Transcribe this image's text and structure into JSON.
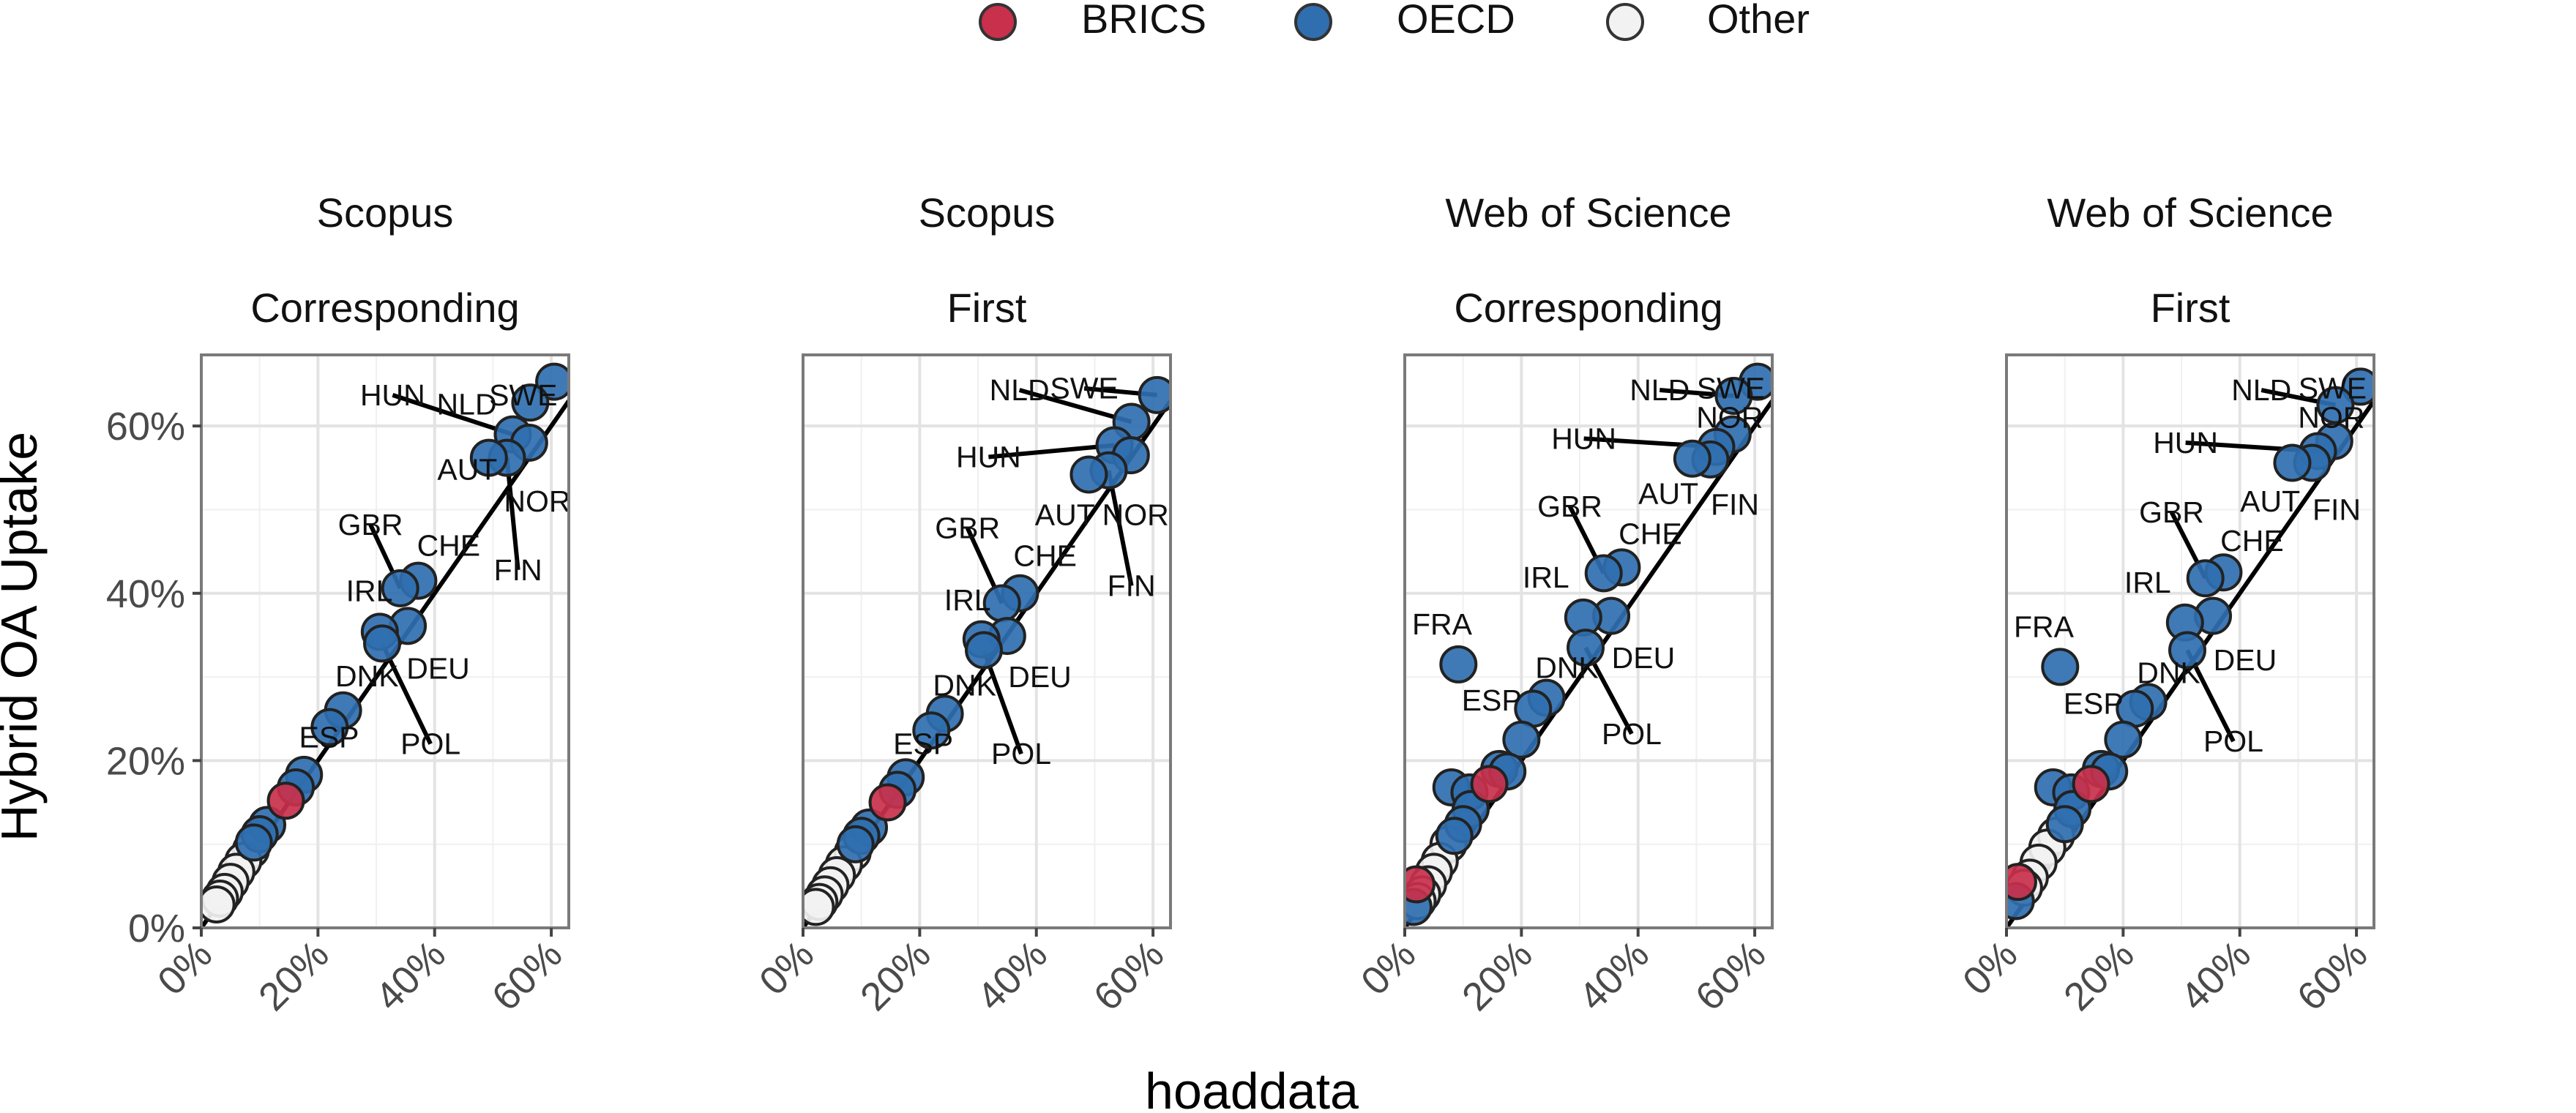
{
  "legend": {
    "position": "top",
    "items": [
      {
        "label": "BRICS",
        "color": "#c8304b"
      },
      {
        "label": "OECD",
        "color": "#2f6fb0"
      },
      {
        "label": "Other",
        "color": "#f2f2f2"
      }
    ]
  },
  "xlabel": "hoaddata",
  "ylabel": "Hybrid OA Uptake",
  "chart_data": {
    "type": "scatter",
    "xlim": [
      0,
      0.63
    ],
    "ylim": [
      0,
      0.685
    ],
    "x_ticks": [
      "0%",
      "20%",
      "40%",
      "60%"
    ],
    "y_ticks": [
      "0%",
      "20%",
      "40%",
      "60%"
    ],
    "grid": true,
    "reference_line": "y = x",
    "facets": [
      {
        "title_line1": "Scopus",
        "title_line2": "Corresponding",
        "points": [
          {
            "x": 0.605,
            "y": 0.653,
            "group": "OECD"
          },
          {
            "x": 0.564,
            "y": 0.628,
            "group": "OECD"
          },
          {
            "x": 0.534,
            "y": 0.59,
            "group": "OECD"
          },
          {
            "x": 0.562,
            "y": 0.58,
            "group": "OECD"
          },
          {
            "x": 0.524,
            "y": 0.562,
            "group": "OECD"
          },
          {
            "x": 0.493,
            "y": 0.562,
            "group": "OECD"
          },
          {
            "x": 0.372,
            "y": 0.415,
            "group": "OECD"
          },
          {
            "x": 0.341,
            "y": 0.406,
            "group": "OECD"
          },
          {
            "x": 0.354,
            "y": 0.361,
            "group": "OECD"
          },
          {
            "x": 0.306,
            "y": 0.354,
            "group": "OECD"
          },
          {
            "x": 0.31,
            "y": 0.34,
            "group": "OECD"
          },
          {
            "x": 0.243,
            "y": 0.26,
            "group": "OECD"
          },
          {
            "x": 0.22,
            "y": 0.24,
            "group": "OECD"
          },
          {
            "x": 0.176,
            "y": 0.183,
            "group": "OECD"
          },
          {
            "x": 0.162,
            "y": 0.168,
            "group": "OECD"
          },
          {
            "x": 0.145,
            "y": 0.152,
            "group": "BRICS"
          },
          {
            "x": 0.113,
            "y": 0.123,
            "group": "OECD"
          },
          {
            "x": 0.1,
            "y": 0.112,
            "group": "OECD"
          },
          {
            "x": 0.09,
            "y": 0.102,
            "group": "OECD"
          },
          {
            "x": 0.085,
            "y": 0.093,
            "group": "Other"
          },
          {
            "x": 0.072,
            "y": 0.08,
            "group": "Other"
          },
          {
            "x": 0.06,
            "y": 0.067,
            "group": "Other"
          },
          {
            "x": 0.05,
            "y": 0.055,
            "group": "Other"
          },
          {
            "x": 0.04,
            "y": 0.043,
            "group": "Other"
          },
          {
            "x": 0.032,
            "y": 0.035,
            "group": "Other"
          },
          {
            "x": 0.026,
            "y": 0.028,
            "group": "Other"
          }
        ],
        "labels": [
          {
            "text": "HUN",
            "x": 0.328,
            "y": 0.637,
            "px": 0.534,
            "py": 0.59
          },
          {
            "text": "NLD",
            "x": 0.455,
            "y": 0.626
          },
          {
            "text": "SWE",
            "x": 0.552,
            "y": 0.637
          },
          {
            "text": "AUT",
            "x": 0.456,
            "y": 0.548
          },
          {
            "text": "NOR",
            "x": 0.576,
            "y": 0.51
          },
          {
            "text": "FIN",
            "x": 0.543,
            "y": 0.428,
            "px": 0.524,
            "py": 0.562
          },
          {
            "text": "GBR",
            "x": 0.29,
            "y": 0.482,
            "px": 0.341,
            "py": 0.406
          },
          {
            "text": "CHE",
            "x": 0.424,
            "y": 0.457
          },
          {
            "text": "IRL",
            "x": 0.288,
            "y": 0.403
          },
          {
            "text": "DEU",
            "x": 0.406,
            "y": 0.31
          },
          {
            "text": "DNK",
            "x": 0.284,
            "y": 0.301
          },
          {
            "text": "POL",
            "x": 0.393,
            "y": 0.22,
            "px": 0.31,
            "py": 0.34
          },
          {
            "text": "ESP",
            "x": 0.219,
            "y": 0.228
          }
        ]
      },
      {
        "title_line1": "Scopus",
        "title_line2": "First",
        "points": [
          {
            "x": 0.607,
            "y": 0.637,
            "group": "OECD"
          },
          {
            "x": 0.563,
            "y": 0.605,
            "group": "OECD"
          },
          {
            "x": 0.534,
            "y": 0.577,
            "group": "OECD"
          },
          {
            "x": 0.562,
            "y": 0.565,
            "group": "OECD"
          },
          {
            "x": 0.524,
            "y": 0.547,
            "group": "OECD"
          },
          {
            "x": 0.49,
            "y": 0.542,
            "group": "OECD"
          },
          {
            "x": 0.372,
            "y": 0.4,
            "group": "OECD"
          },
          {
            "x": 0.341,
            "y": 0.388,
            "group": "OECD"
          },
          {
            "x": 0.35,
            "y": 0.349,
            "group": "OECD"
          },
          {
            "x": 0.306,
            "y": 0.345,
            "group": "OECD"
          },
          {
            "x": 0.31,
            "y": 0.332,
            "group": "OECD"
          },
          {
            "x": 0.243,
            "y": 0.256,
            "group": "OECD"
          },
          {
            "x": 0.22,
            "y": 0.236,
            "group": "OECD"
          },
          {
            "x": 0.176,
            "y": 0.18,
            "group": "OECD"
          },
          {
            "x": 0.162,
            "y": 0.165,
            "group": "OECD"
          },
          {
            "x": 0.145,
            "y": 0.15,
            "group": "BRICS"
          },
          {
            "x": 0.113,
            "y": 0.12,
            "group": "OECD"
          },
          {
            "x": 0.1,
            "y": 0.11,
            "group": "OECD"
          },
          {
            "x": 0.09,
            "y": 0.1,
            "group": "OECD"
          },
          {
            "x": 0.085,
            "y": 0.09,
            "group": "Other"
          },
          {
            "x": 0.07,
            "y": 0.076,
            "group": "Other"
          },
          {
            "x": 0.058,
            "y": 0.063,
            "group": "Other"
          },
          {
            "x": 0.047,
            "y": 0.051,
            "group": "Other"
          },
          {
            "x": 0.037,
            "y": 0.04,
            "group": "Other"
          },
          {
            "x": 0.028,
            "y": 0.031,
            "group": "Other"
          },
          {
            "x": 0.022,
            "y": 0.025,
            "group": "Other"
          }
        ],
        "labels": [
          {
            "text": "NLD",
            "x": 0.371,
            "y": 0.643,
            "px": 0.563,
            "py": 0.605
          },
          {
            "text": "SWE",
            "x": 0.482,
            "y": 0.645,
            "px": 0.607,
            "py": 0.637
          },
          {
            "text": "HUN",
            "x": 0.318,
            "y": 0.563,
            "px": 0.534,
            "py": 0.577
          },
          {
            "text": "AUT",
            "x": 0.449,
            "y": 0.494
          },
          {
            "text": "NOR",
            "x": 0.57,
            "y": 0.494
          },
          {
            "text": "FIN",
            "x": 0.563,
            "y": 0.409,
            "px": 0.524,
            "py": 0.547
          },
          {
            "text": "GBR",
            "x": 0.282,
            "y": 0.478,
            "px": 0.341,
            "py": 0.388
          },
          {
            "text": "CHE",
            "x": 0.415,
            "y": 0.445
          },
          {
            "text": "IRL",
            "x": 0.282,
            "y": 0.392
          },
          {
            "text": "DEU",
            "x": 0.406,
            "y": 0.3
          },
          {
            "text": "DNK",
            "x": 0.277,
            "y": 0.29
          },
          {
            "text": "POL",
            "x": 0.374,
            "y": 0.208,
            "px": 0.31,
            "py": 0.332
          },
          {
            "text": "ESP",
            "x": 0.206,
            "y": 0.22
          }
        ]
      },
      {
        "title_line1": "Web of Science",
        "title_line2": "Corresponding",
        "points": [
          {
            "x": 0.605,
            "y": 0.653,
            "group": "OECD"
          },
          {
            "x": 0.564,
            "y": 0.636,
            "group": "OECD"
          },
          {
            "x": 0.562,
            "y": 0.59,
            "group": "OECD"
          },
          {
            "x": 0.534,
            "y": 0.575,
            "group": "OECD"
          },
          {
            "x": 0.524,
            "y": 0.56,
            "group": "OECD"
          },
          {
            "x": 0.493,
            "y": 0.561,
            "group": "OECD"
          },
          {
            "x": 0.372,
            "y": 0.431,
            "group": "OECD"
          },
          {
            "x": 0.341,
            "y": 0.424,
            "group": "OECD"
          },
          {
            "x": 0.354,
            "y": 0.373,
            "group": "OECD"
          },
          {
            "x": 0.306,
            "y": 0.371,
            "group": "OECD"
          },
          {
            "x": 0.31,
            "y": 0.335,
            "group": "OECD"
          },
          {
            "x": 0.243,
            "y": 0.275,
            "group": "OECD"
          },
          {
            "x": 0.22,
            "y": 0.262,
            "group": "OECD"
          },
          {
            "x": 0.2,
            "y": 0.225,
            "group": "OECD"
          },
          {
            "x": 0.092,
            "y": 0.315,
            "group": "OECD"
          },
          {
            "x": 0.08,
            "y": 0.168,
            "group": "OECD"
          },
          {
            "x": 0.111,
            "y": 0.162,
            "group": "OECD"
          },
          {
            "x": 0.162,
            "y": 0.19,
            "group": "OECD"
          },
          {
            "x": 0.176,
            "y": 0.187,
            "group": "OECD"
          },
          {
            "x": 0.145,
            "y": 0.172,
            "group": "BRICS"
          },
          {
            "x": 0.113,
            "y": 0.142,
            "group": "OECD"
          },
          {
            "x": 0.1,
            "y": 0.124,
            "group": "OECD"
          },
          {
            "x": 0.085,
            "y": 0.11,
            "group": "OECD"
          },
          {
            "x": 0.075,
            "y": 0.1,
            "group": "Other"
          },
          {
            "x": 0.06,
            "y": 0.08,
            "group": "Other"
          },
          {
            "x": 0.05,
            "y": 0.067,
            "group": "Other"
          },
          {
            "x": 0.04,
            "y": 0.052,
            "group": "Other"
          },
          {
            "x": 0.03,
            "y": 0.04,
            "group": "Other"
          },
          {
            "x": 0.022,
            "y": 0.032,
            "group": "Other"
          },
          {
            "x": 0.02,
            "y": 0.052,
            "group": "BRICS"
          },
          {
            "x": 0.015,
            "y": 0.025,
            "group": "OECD"
          }
        ],
        "labels": [
          {
            "text": "NLD",
            "x": 0.437,
            "y": 0.643,
            "px": 0.564,
            "py": 0.636
          },
          {
            "text": "SWE",
            "x": 0.559,
            "y": 0.645
          },
          {
            "text": "NOR",
            "x": 0.557,
            "y": 0.61
          },
          {
            "text": "HUN",
            "x": 0.307,
            "y": 0.585,
            "px": 0.534,
            "py": 0.575
          },
          {
            "text": "AUT",
            "x": 0.452,
            "y": 0.519
          },
          {
            "text": "FIN",
            "x": 0.566,
            "y": 0.506
          },
          {
            "text": "GBR",
            "x": 0.283,
            "y": 0.504,
            "px": 0.341,
            "py": 0.424
          },
          {
            "text": "CHE",
            "x": 0.421,
            "y": 0.471
          },
          {
            "text": "IRL",
            "x": 0.242,
            "y": 0.419
          },
          {
            "text": "FRA",
            "x": 0.064,
            "y": 0.363
          },
          {
            "text": "ESP",
            "x": 0.149,
            "y": 0.272
          },
          {
            "text": "DNK",
            "x": 0.278,
            "y": 0.311
          },
          {
            "text": "DEU",
            "x": 0.409,
            "y": 0.323
          },
          {
            "text": "POL",
            "x": 0.389,
            "y": 0.232,
            "px": 0.31,
            "py": 0.335
          }
        ]
      },
      {
        "title_line1": "Web of Science",
        "title_line2": "First",
        "points": [
          {
            "x": 0.607,
            "y": 0.647,
            "group": "OECD"
          },
          {
            "x": 0.564,
            "y": 0.625,
            "group": "OECD"
          },
          {
            "x": 0.562,
            "y": 0.582,
            "group": "OECD"
          },
          {
            "x": 0.534,
            "y": 0.57,
            "group": "OECD"
          },
          {
            "x": 0.524,
            "y": 0.556,
            "group": "OECD"
          },
          {
            "x": 0.49,
            "y": 0.556,
            "group": "OECD"
          },
          {
            "x": 0.372,
            "y": 0.425,
            "group": "OECD"
          },
          {
            "x": 0.341,
            "y": 0.418,
            "group": "OECD"
          },
          {
            "x": 0.354,
            "y": 0.373,
            "group": "OECD"
          },
          {
            "x": 0.306,
            "y": 0.365,
            "group": "OECD"
          },
          {
            "x": 0.31,
            "y": 0.332,
            "group": "OECD"
          },
          {
            "x": 0.243,
            "y": 0.27,
            "group": "OECD"
          },
          {
            "x": 0.22,
            "y": 0.262,
            "group": "OECD"
          },
          {
            "x": 0.2,
            "y": 0.225,
            "group": "OECD"
          },
          {
            "x": 0.092,
            "y": 0.312,
            "group": "OECD"
          },
          {
            "x": 0.08,
            "y": 0.168,
            "group": "OECD"
          },
          {
            "x": 0.111,
            "y": 0.162,
            "group": "OECD"
          },
          {
            "x": 0.162,
            "y": 0.19,
            "group": "OECD"
          },
          {
            "x": 0.176,
            "y": 0.187,
            "group": "OECD"
          },
          {
            "x": 0.145,
            "y": 0.172,
            "group": "BRICS"
          },
          {
            "x": 0.113,
            "y": 0.142,
            "group": "OECD"
          },
          {
            "x": 0.1,
            "y": 0.124,
            "group": "OECD"
          },
          {
            "x": 0.085,
            "y": 0.11,
            "group": "Other"
          },
          {
            "x": 0.07,
            "y": 0.096,
            "group": "Other"
          },
          {
            "x": 0.055,
            "y": 0.078,
            "group": "Other"
          },
          {
            "x": 0.04,
            "y": 0.06,
            "group": "Other"
          },
          {
            "x": 0.03,
            "y": 0.048,
            "group": "Other"
          },
          {
            "x": 0.02,
            "y": 0.055,
            "group": "BRICS"
          },
          {
            "x": 0.016,
            "y": 0.032,
            "group": "OECD"
          }
        ],
        "labels": [
          {
            "text": "NLD",
            "x": 0.437,
            "y": 0.643,
            "px": 0.564,
            "py": 0.625
          },
          {
            "text": "SWE",
            "x": 0.559,
            "y": 0.645
          },
          {
            "text": "NOR",
            "x": 0.557,
            "y": 0.61
          },
          {
            "text": "HUN",
            "x": 0.307,
            "y": 0.58,
            "px": 0.534,
            "py": 0.57
          },
          {
            "text": "AUT",
            "x": 0.452,
            "y": 0.51
          },
          {
            "text": "FIN",
            "x": 0.566,
            "y": 0.5
          },
          {
            "text": "GBR",
            "x": 0.283,
            "y": 0.497,
            "px": 0.341,
            "py": 0.418
          },
          {
            "text": "CHE",
            "x": 0.421,
            "y": 0.463
          },
          {
            "text": "IRL",
            "x": 0.242,
            "y": 0.413
          },
          {
            "text": "FRA",
            "x": 0.064,
            "y": 0.36
          },
          {
            "text": "ESP",
            "x": 0.149,
            "y": 0.268
          },
          {
            "text": "DNK",
            "x": 0.278,
            "y": 0.305
          },
          {
            "text": "DEU",
            "x": 0.409,
            "y": 0.32
          },
          {
            "text": "POL",
            "x": 0.389,
            "y": 0.223,
            "px": 0.31,
            "py": 0.332
          }
        ]
      }
    ]
  }
}
